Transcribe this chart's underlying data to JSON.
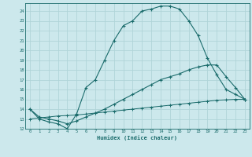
{
  "xlabel": "Humidex (Indice chaleur)",
  "bg_color": "#cce8ec",
  "grid_color": "#b0d4d8",
  "line_color": "#1a6b6b",
  "xlim": [
    -0.5,
    23.5
  ],
  "ylim": [
    12,
    24.8
  ],
  "yticks": [
    12,
    13,
    14,
    15,
    16,
    17,
    18,
    19,
    20,
    21,
    22,
    23,
    24
  ],
  "xticks": [
    0,
    1,
    2,
    3,
    4,
    5,
    6,
    7,
    8,
    9,
    10,
    11,
    12,
    13,
    14,
    15,
    16,
    17,
    18,
    19,
    20,
    21,
    22,
    23
  ],
  "curve1_x": [
    0,
    1,
    2,
    3,
    4,
    5,
    6,
    7,
    8,
    9,
    10,
    11,
    12,
    13,
    14,
    15,
    16,
    17,
    18,
    19,
    20,
    21,
    22,
    23
  ],
  "curve1_y": [
    14.0,
    13.0,
    12.7,
    12.5,
    12.0,
    13.5,
    16.2,
    17.0,
    19.0,
    21.0,
    22.5,
    23.0,
    24.0,
    24.2,
    24.5,
    24.5,
    24.2,
    23.0,
    21.5,
    19.2,
    17.5,
    16.0,
    15.5,
    15.0
  ],
  "curve2_x": [
    0,
    1,
    2,
    3,
    4,
    5,
    6,
    7,
    8,
    9,
    10,
    11,
    12,
    13,
    14,
    15,
    16,
    17,
    18,
    19,
    20,
    21,
    22,
    23
  ],
  "curve2_y": [
    14.0,
    13.2,
    13.0,
    12.8,
    12.5,
    12.8,
    13.2,
    13.6,
    14.0,
    14.5,
    15.0,
    15.5,
    16.0,
    16.5,
    17.0,
    17.3,
    17.6,
    18.0,
    18.3,
    18.5,
    18.5,
    17.3,
    16.2,
    15.0
  ],
  "curve3_x": [
    0,
    1,
    2,
    3,
    4,
    5,
    6,
    7,
    8,
    9,
    10,
    11,
    12,
    13,
    14,
    15,
    16,
    17,
    18,
    19,
    20,
    21,
    22,
    23
  ],
  "curve3_y": [
    13.0,
    13.1,
    13.2,
    13.3,
    13.35,
    13.4,
    13.5,
    13.6,
    13.7,
    13.8,
    13.9,
    14.0,
    14.1,
    14.2,
    14.3,
    14.4,
    14.5,
    14.6,
    14.7,
    14.8,
    14.9,
    14.95,
    15.0,
    15.0
  ]
}
